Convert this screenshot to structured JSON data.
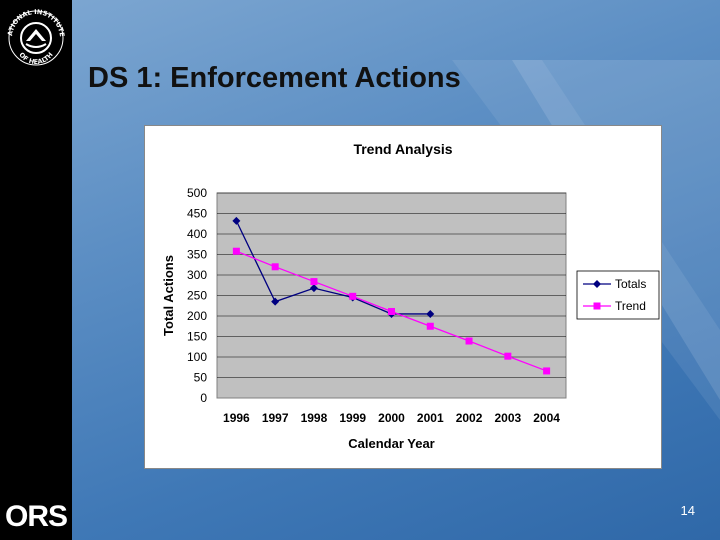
{
  "slide": {
    "title": "DS 1: Enforcement Actions",
    "page_number": "14",
    "brand_logo_text": "ORS",
    "seal_text": "NATIONAL INSTITUTES OF HEALTH",
    "colors": {
      "background": "#5d8fc4",
      "sidebar": "#000000"
    }
  },
  "chart_data": {
    "type": "line",
    "title": "Trend Analysis",
    "xlabel": "Calendar Year",
    "ylabel": "Total Actions",
    "categories": [
      "1996",
      "1997",
      "1998",
      "1999",
      "2000",
      "2001",
      "2002",
      "2003",
      "2004"
    ],
    "ylim": [
      0,
      500
    ],
    "yticks": [
      0,
      50,
      100,
      150,
      200,
      250,
      300,
      350,
      400,
      450,
      500
    ],
    "grid": true,
    "legend_position": "right",
    "plot_background": "#c0c0c0",
    "series": [
      {
        "name": "Totals",
        "color": "#000080",
        "marker": "diamond",
        "values": [
          432,
          235,
          268,
          245,
          205,
          205,
          null,
          null,
          null
        ]
      },
      {
        "name": "Trend",
        "color": "#ff00ff",
        "marker": "square",
        "values": [
          358,
          320,
          284,
          248,
          211,
          175,
          139,
          102,
          66
        ]
      }
    ]
  }
}
